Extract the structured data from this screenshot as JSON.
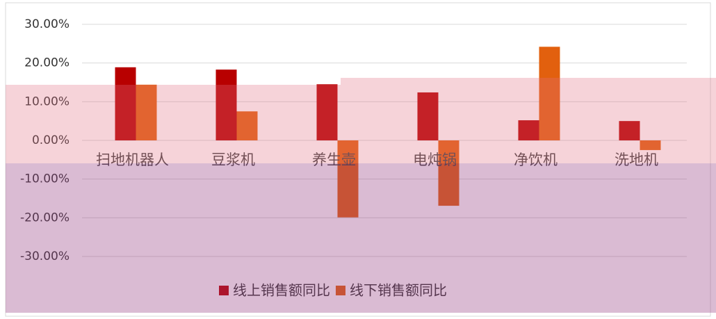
{
  "chart_data": {
    "type": "bar",
    "categories": [
      "扫地机器人",
      "豆浆机",
      "养生壶",
      "电炖锅",
      "净饮机",
      "洗地机"
    ],
    "series": [
      {
        "name": "线上销售额同比",
        "color": "#b80000",
        "values": [
          18.9,
          18.3,
          14.5,
          12.4,
          5.2,
          5.0
        ]
      },
      {
        "name": "线下销售额同比",
        "color": "#e2600e",
        "values": [
          14.4,
          7.5,
          -19.9,
          -16.9,
          24.2,
          -2.5
        ]
      }
    ],
    "ylim": [
      -30,
      30
    ],
    "yticks": [
      {
        "value": -30,
        "label": "-30.00%"
      },
      {
        "value": -20,
        "label": "-20.00%"
      },
      {
        "value": -10,
        "label": "-10.00%"
      },
      {
        "value": 0,
        "label": "0.00%"
      },
      {
        "value": 10,
        "label": "10.00%"
      },
      {
        "value": 20,
        "label": "20.00%"
      },
      {
        "value": 30,
        "label": "30.00%"
      }
    ],
    "grid": true,
    "legend": "bottom"
  }
}
